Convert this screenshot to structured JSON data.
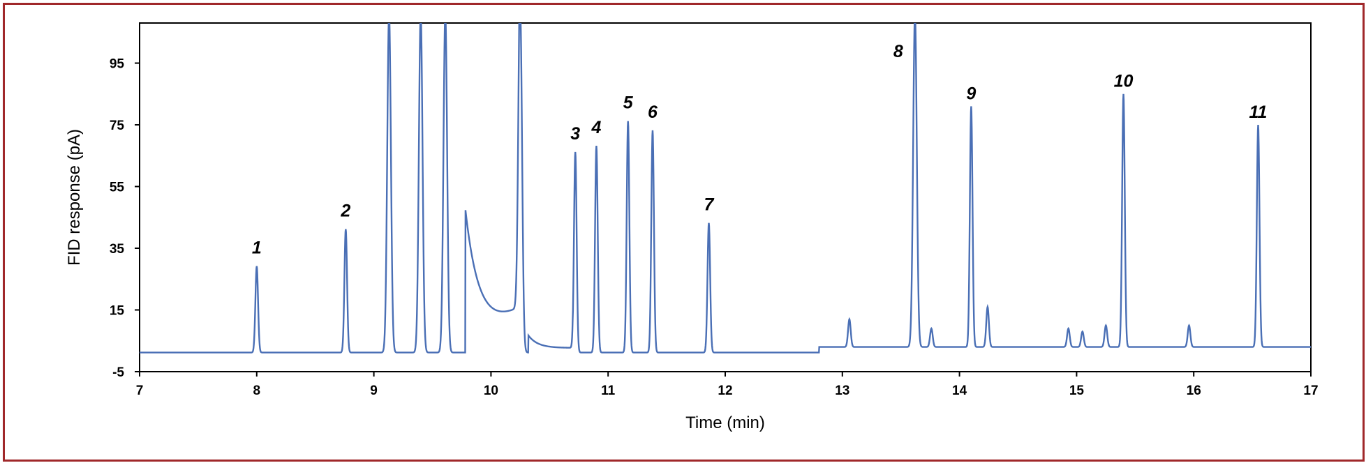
{
  "chart_data": {
    "type": "line",
    "title": "",
    "xlabel": "Time (min)",
    "ylabel": "FID response (pA)",
    "xlim": [
      7,
      17
    ],
    "ylim": [
      -5,
      108
    ],
    "x_ticks": [
      7,
      8,
      9,
      10,
      11,
      12,
      13,
      14,
      15,
      16,
      17
    ],
    "y_ticks": [
      -5,
      15,
      35,
      55,
      75,
      95
    ],
    "grid": false,
    "line_color": "#4a6fb5",
    "frame_color": "#a0282a",
    "baseline": 1.2,
    "peaks": [
      {
        "label": "1",
        "t": 8.0,
        "height": 28
      },
      {
        "label": "2",
        "t": 8.76,
        "height": 40
      },
      {
        "label": "",
        "t": 9.13,
        "height": 110
      },
      {
        "label": "",
        "t": 9.4,
        "height": 110
      },
      {
        "label": "",
        "t": 9.61,
        "height": 110
      },
      {
        "label": "",
        "t": 10.25,
        "height": 110
      },
      {
        "label": "3",
        "t": 10.72,
        "height": 65
      },
      {
        "label": "4",
        "t": 10.9,
        "height": 67
      },
      {
        "label": "5",
        "t": 11.17,
        "height": 75
      },
      {
        "label": "6",
        "t": 11.38,
        "height": 72
      },
      {
        "label": "7",
        "t": 11.86,
        "height": 42
      },
      {
        "label": "",
        "t": 13.06,
        "height": 9
      },
      {
        "label": "8",
        "t": 13.62,
        "height": 108
      },
      {
        "label": "",
        "t": 13.76,
        "height": 6
      },
      {
        "label": "9",
        "t": 14.1,
        "height": 78
      },
      {
        "label": "",
        "t": 14.24,
        "height": 13
      },
      {
        "label": "",
        "t": 14.93,
        "height": 6
      },
      {
        "label": "",
        "t": 15.05,
        "height": 5
      },
      {
        "label": "",
        "t": 15.25,
        "height": 7
      },
      {
        "label": "10",
        "t": 15.4,
        "height": 82
      },
      {
        "label": "",
        "t": 15.96,
        "height": 7
      },
      {
        "label": "11",
        "t": 16.55,
        "height": 72
      }
    ]
  }
}
